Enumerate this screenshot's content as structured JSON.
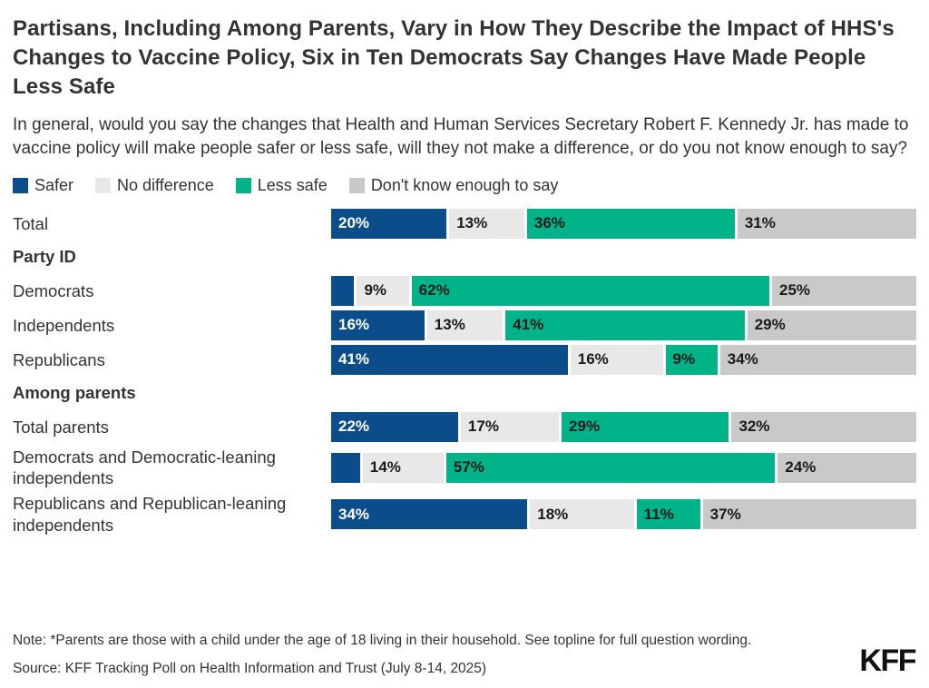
{
  "title": "Partisans, Including Among Parents, Vary in How They Describe the Impact of HHS's Changes to Vaccine Policy, Six in Ten Democrats Say Changes Have Made People Less Safe",
  "subtitle": "In general, would you say the changes that Health and Human Services Secretary Robert F. Kennedy Jr. has made to vaccine policy will make people safer or less safe, will they not make a difference, or do you not know enough to say?",
  "legend": [
    {
      "label": "Safer",
      "color": "#0b4d8b",
      "text_color": "#ffffff"
    },
    {
      "label": "No difference",
      "color": "#e8e8e8",
      "text_color": "#1a1a1a"
    },
    {
      "label": "Less safe",
      "color": "#00b388",
      "text_color": "#1a1a1a"
    },
    {
      "label": "Don't know enough to say",
      "color": "#c9c9c9",
      "text_color": "#1a1a1a"
    }
  ],
  "chart_data": {
    "type": "bar",
    "orientation": "horizontal-stacked",
    "unit": "percent",
    "xlim": [
      0,
      100
    ],
    "legend_position": "top",
    "series_names": [
      "Safer",
      "No difference",
      "Less safe",
      "Don't know enough to say"
    ],
    "rows": [
      {
        "label": "Total",
        "values": [
          20,
          13,
          36,
          31
        ],
        "display": [
          "20%",
          "13%",
          "36%",
          "31%"
        ]
      },
      {
        "label": "Party ID",
        "header": true
      },
      {
        "label": "Democrats",
        "values": [
          4,
          9,
          62,
          25
        ],
        "display": [
          "",
          "9%",
          "62%",
          "25%"
        ]
      },
      {
        "label": "Independents",
        "values": [
          16,
          13,
          41,
          29
        ],
        "display": [
          "16%",
          "13%",
          "41%",
          "29%"
        ]
      },
      {
        "label": "Republicans",
        "values": [
          41,
          16,
          9,
          34
        ],
        "display": [
          "41%",
          "16%",
          "9%",
          "34%"
        ]
      },
      {
        "label": "Among parents",
        "header": true
      },
      {
        "label": "Total parents",
        "values": [
          22,
          17,
          29,
          32
        ],
        "display": [
          "22%",
          "17%",
          "29%",
          "32%"
        ]
      },
      {
        "label": "Democrats and Democratic-leaning independents",
        "values": [
          5,
          14,
          57,
          24
        ],
        "display": [
          "",
          "14%",
          "57%",
          "24%"
        ]
      },
      {
        "label": "Republicans and Republican-leaning independents",
        "values": [
          34,
          18,
          11,
          37
        ],
        "display": [
          "34%",
          "18%",
          "11%",
          "37%"
        ]
      }
    ]
  },
  "note": "Note: *Parents are those with a child under the age of 18 living in their household. See topline for full question wording.",
  "source": "Source: KFF Tracking Poll on Health Information and Trust (July 8-14, 2025)",
  "logo": "KFF"
}
